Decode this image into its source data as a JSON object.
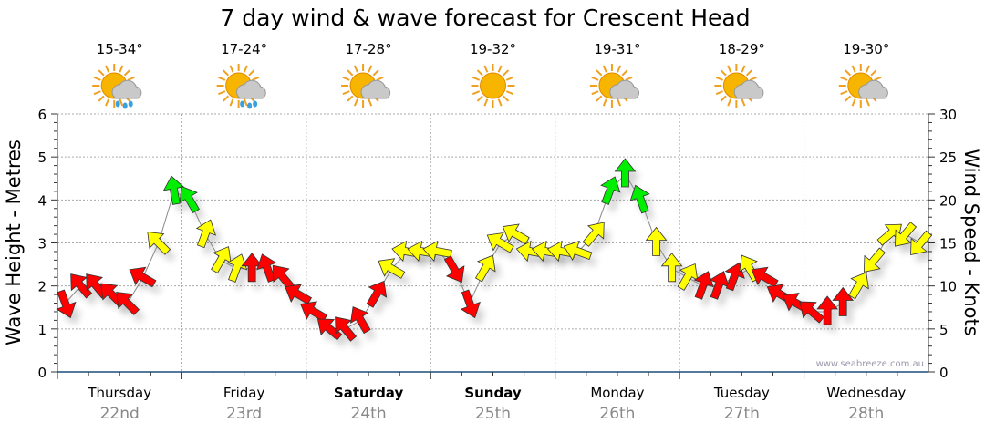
{
  "chart_data": {
    "type": "line",
    "title": "7 day wind & wave forecast for Crescent Head",
    "ylabel": "Wave Height - Metres",
    "y2label": "Wind Speed - Knots",
    "ylim": [
      0,
      6
    ],
    "y2lim": [
      0,
      30
    ],
    "yticks": [
      "0",
      "1",
      "2",
      "3",
      "4",
      "5",
      "6"
    ],
    "y2ticks": [
      "0",
      "5",
      "10",
      "15",
      "20",
      "25",
      "30"
    ],
    "grid": true,
    "watermark": "www.seabreeze.com.au",
    "days": [
      {
        "name": "Thursday",
        "date": "22nd",
        "temp": "15-34°",
        "weather": "sun-cloud-rain",
        "weekend": false
      },
      {
        "name": "Friday",
        "date": "23rd",
        "temp": "17-24°",
        "weather": "sun-cloud-rain",
        "weekend": false
      },
      {
        "name": "Saturday",
        "date": "24th",
        "temp": "17-28°",
        "weather": "sun-cloud",
        "weekend": true
      },
      {
        "name": "Sunday",
        "date": "25th",
        "temp": "19-32°",
        "weather": "sun",
        "weekend": true
      },
      {
        "name": "Monday",
        "date": "26th",
        "temp": "19-31°",
        "weather": "sun-cloud",
        "weekend": false
      },
      {
        "name": "Tuesday",
        "date": "27th",
        "temp": "18-29°",
        "weather": "sun-cloud",
        "weekend": false
      },
      {
        "name": "Wednesday",
        "date": "28th",
        "temp": "19-30°",
        "weather": "sun-cloud",
        "weekend": false
      }
    ],
    "colors": {
      "r": "#ff0000",
      "y": "#ffff00",
      "g": "#00ee00"
    },
    "series": [
      {
        "name": "Wind speed (knots), 3-hourly",
        "values": [
          8,
          10,
          10,
          9,
          8,
          11,
          15,
          21,
          20,
          16,
          13,
          12,
          12,
          12,
          11,
          9,
          7,
          5,
          5,
          6,
          9,
          12,
          14,
          14,
          14,
          12,
          8,
          12,
          15,
          16,
          14,
          14,
          14,
          14,
          16,
          21,
          23,
          20,
          15,
          12,
          11,
          10,
          10,
          11,
          12,
          11,
          9,
          8,
          7,
          7,
          8,
          10,
          13,
          16,
          16,
          15
        ],
        "direction_deg": [
          160,
          320,
          320,
          315,
          315,
          300,
          315,
          350,
          330,
          20,
          30,
          20,
          0,
          340,
          320,
          300,
          300,
          310,
          320,
          330,
          30,
          300,
          280,
          280,
          280,
          150,
          160,
          30,
          300,
          300,
          280,
          280,
          280,
          290,
          40,
          20,
          0,
          340,
          0,
          0,
          30,
          20,
          20,
          20,
          330,
          300,
          300,
          300,
          310,
          0,
          0,
          30,
          220,
          50,
          220,
          220
        ],
        "color": [
          "r",
          "r",
          "r",
          "r",
          "r",
          "r",
          "y",
          "g",
          "g",
          "y",
          "y",
          "y",
          "r",
          "r",
          "r",
          "r",
          "r",
          "r",
          "r",
          "r",
          "r",
          "y",
          "y",
          "y",
          "y",
          "r",
          "r",
          "y",
          "y",
          "y",
          "y",
          "y",
          "y",
          "y",
          "y",
          "g",
          "g",
          "g",
          "y",
          "y",
          "y",
          "r",
          "r",
          "r",
          "y",
          "r",
          "r",
          "r",
          "r",
          "r",
          "r",
          "y",
          "y",
          "y",
          "y",
          "y"
        ]
      }
    ]
  }
}
